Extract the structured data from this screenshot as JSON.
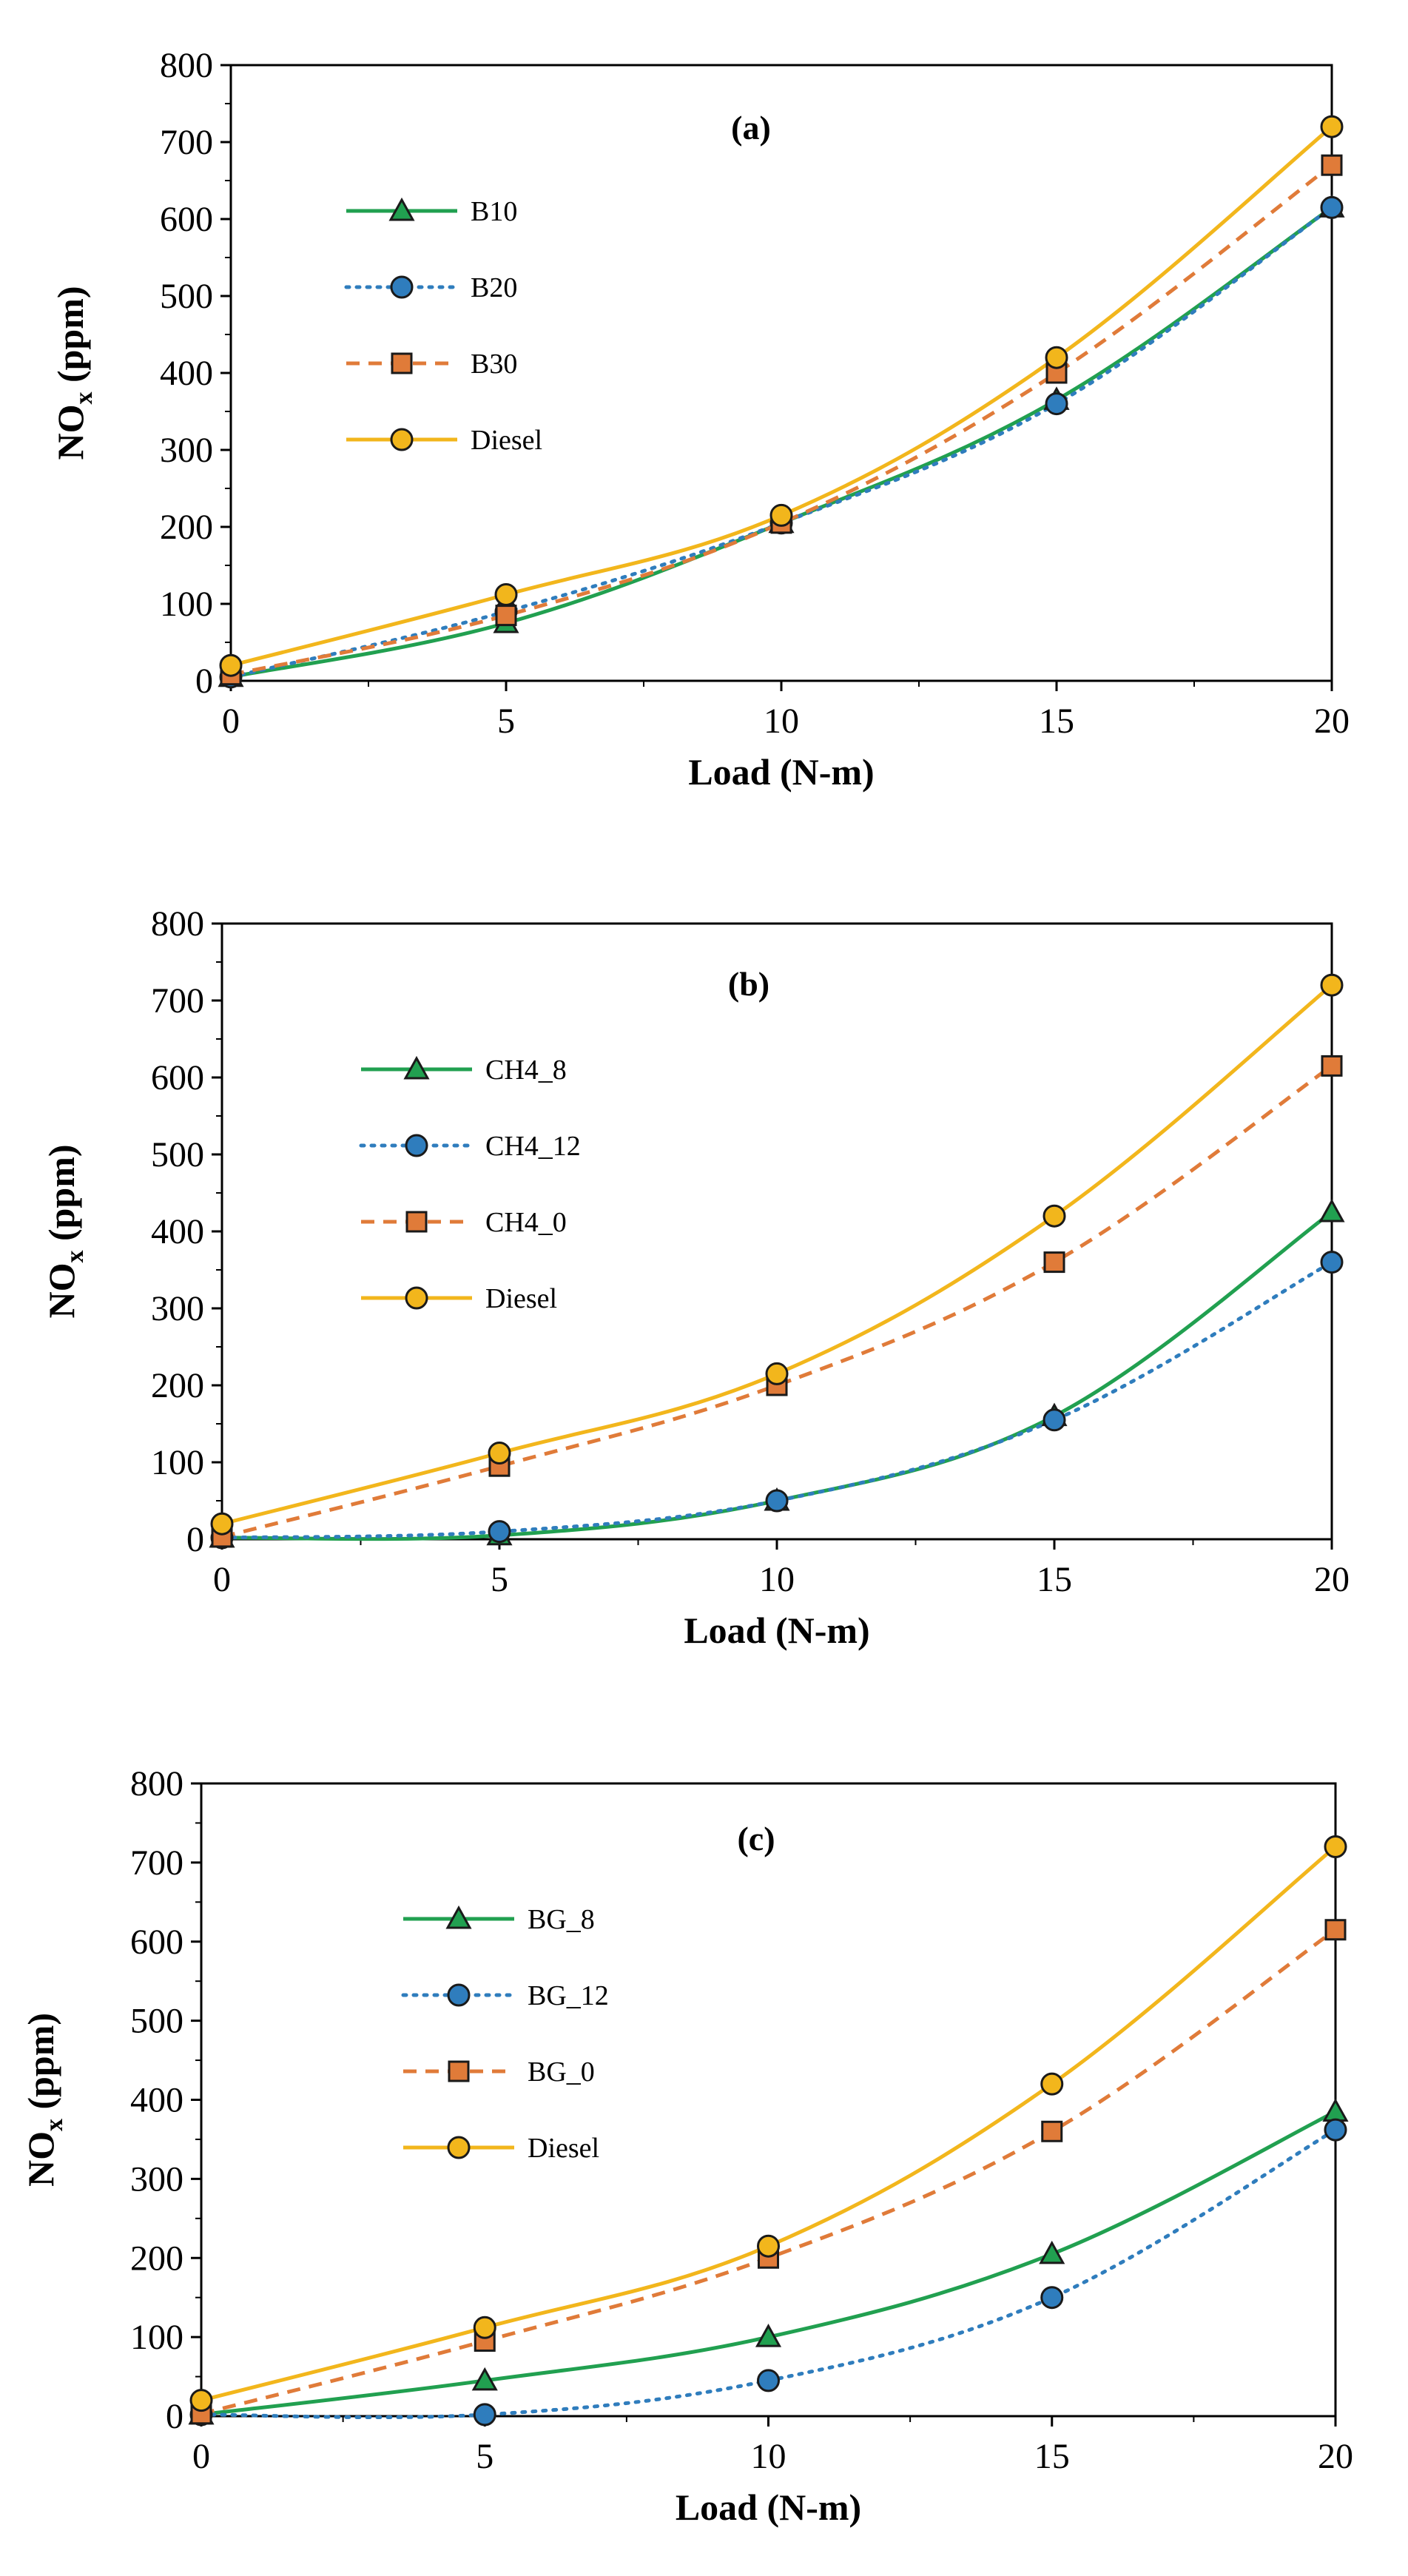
{
  "colors": {
    "green": "#21a050",
    "blue": "#2f7dbd",
    "orange": "#e07b39",
    "yellow": "#f2b61c",
    "axis": "#000000"
  },
  "chart_data": [
    {
      "type": "line",
      "panel_label": "(a)",
      "xlabel": "Load (N-m)",
      "ylabel": {
        "main": "NO",
        "sub": "x",
        "suffix": " (ppm)"
      },
      "xlim": [
        0,
        20
      ],
      "ylim": [
        0,
        800
      ],
      "xticks": [
        0,
        5,
        10,
        15,
        20
      ],
      "yticks": [
        0,
        100,
        200,
        300,
        400,
        500,
        600,
        700,
        800
      ],
      "x": [
        0,
        5,
        10,
        15,
        20
      ],
      "legend_position": "upper-left",
      "series": [
        {
          "name": "B10",
          "values": [
            5,
            75,
            205,
            365,
            615
          ],
          "color": "green",
          "marker": "triangle",
          "dash": "solid"
        },
        {
          "name": "B20",
          "values": [
            5,
            90,
            205,
            360,
            615
          ],
          "color": "blue",
          "marker": "circle",
          "dash": "dotted"
        },
        {
          "name": "B30",
          "values": [
            8,
            85,
            205,
            400,
            670
          ],
          "color": "orange",
          "marker": "square",
          "dash": "dashed"
        },
        {
          "name": "Diesel",
          "values": [
            20,
            112,
            215,
            420,
            720
          ],
          "color": "yellow",
          "marker": "circle",
          "dash": "solid"
        }
      ]
    },
    {
      "type": "line",
      "panel_label": "(b)",
      "xlabel": "Load (N-m)",
      "ylabel": {
        "main": "NO",
        "sub": "x",
        "suffix": " (ppm)"
      },
      "xlim": [
        0,
        20
      ],
      "ylim": [
        0,
        800
      ],
      "xticks": [
        0,
        5,
        10,
        15,
        20
      ],
      "yticks": [
        0,
        100,
        200,
        300,
        400,
        500,
        600,
        700,
        800
      ],
      "x": [
        0,
        5,
        10,
        15,
        20
      ],
      "legend_position": "upper-left",
      "series": [
        {
          "name": "CH4_8",
          "values": [
            2,
            5,
            50,
            160,
            425
          ],
          "color": "green",
          "marker": "triangle",
          "dash": "solid"
        },
        {
          "name": "CH4_12",
          "values": [
            2,
            10,
            50,
            155,
            360
          ],
          "color": "blue",
          "marker": "circle",
          "dash": "dotted"
        },
        {
          "name": "CH4_0",
          "values": [
            3,
            95,
            200,
            360,
            615
          ],
          "color": "orange",
          "marker": "square",
          "dash": "dashed"
        },
        {
          "name": "Diesel",
          "values": [
            20,
            112,
            215,
            420,
            720
          ],
          "color": "yellow",
          "marker": "circle",
          "dash": "solid"
        }
      ]
    },
    {
      "type": "line",
      "panel_label": "(c)",
      "xlabel": "Load (N-m)",
      "ylabel": {
        "main": "NO",
        "sub": "x",
        "suffix": " (ppm)"
      },
      "xlim": [
        0,
        20
      ],
      "ylim": [
        0,
        800
      ],
      "xticks": [
        0,
        5,
        10,
        15,
        20
      ],
      "yticks": [
        0,
        100,
        200,
        300,
        400,
        500,
        600,
        700,
        800
      ],
      "x": [
        0,
        5,
        10,
        15,
        20
      ],
      "legend_position": "upper-left",
      "series": [
        {
          "name": "BG_8",
          "values": [
            2,
            45,
            100,
            205,
            385
          ],
          "color": "green",
          "marker": "triangle",
          "dash": "solid"
        },
        {
          "name": "BG_12",
          "values": [
            2,
            2,
            45,
            150,
            362
          ],
          "color": "blue",
          "marker": "circle",
          "dash": "dotted"
        },
        {
          "name": "BG_0",
          "values": [
            3,
            95,
            200,
            360,
            615
          ],
          "color": "orange",
          "marker": "square",
          "dash": "dashed"
        },
        {
          "name": "Diesel",
          "values": [
            20,
            112,
            215,
            420,
            720
          ],
          "color": "yellow",
          "marker": "circle",
          "dash": "solid"
        }
      ]
    }
  ]
}
